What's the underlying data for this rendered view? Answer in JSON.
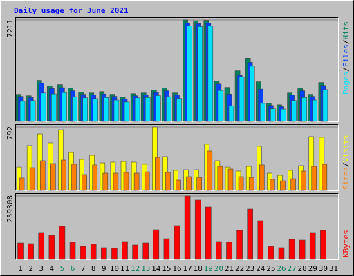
{
  "chart_data": [
    {
      "type": "bar",
      "title": "Daily usage for June 2021",
      "ylim": [
        0,
        7211
      ],
      "yticks": [
        7211
      ],
      "legend_separator": "/",
      "series": [
        {
          "name": "Hits",
          "color": "#00805c",
          "values": [
            1926,
            1830,
            2915,
            2520,
            2620,
            2370,
            2075,
            2025,
            2125,
            1930,
            1730,
            1975,
            2025,
            2220,
            2370,
            2025,
            7211,
            7150,
            7180,
            2865,
            2420,
            3600,
            4495,
            2815,
            1285,
            1185,
            2025,
            2370,
            1930,
            2765,
            null
          ]
        },
        {
          "name": "Files",
          "color": "#0040ff",
          "values": [
            1780,
            1700,
            2720,
            2340,
            2400,
            2180,
            1930,
            1880,
            1950,
            1790,
            1600,
            1830,
            1880,
            2060,
            2180,
            1880,
            7000,
            6950,
            6980,
            2660,
            1950,
            3280,
            4200,
            2300,
            1140,
            1060,
            1880,
            2180,
            1780,
            2560,
            null
          ]
        },
        {
          "name": "Pages",
          "color": "#00e0ff",
          "values": [
            1430,
            1480,
            2020,
            1960,
            2050,
            1760,
            1680,
            1620,
            1700,
            1520,
            1380,
            1680,
            1700,
            1840,
            1760,
            1640,
            6800,
            6750,
            6780,
            2200,
            1100,
            3180,
            3930,
            1280,
            900,
            880,
            1480,
            1700,
            1520,
            2260,
            null
          ]
        }
      ]
    },
    {
      "type": "bar",
      "ylim": [
        0,
        792
      ],
      "yticks": [
        792
      ],
      "legend_separator": "/",
      "series": [
        {
          "name": "Visits",
          "color": "#ffff00",
          "values": [
            292,
            560,
            706,
            594,
            757,
            473,
            387,
            439,
            344,
            353,
            361,
            353,
            327,
            792,
            422,
            250,
            258,
            258,
            577,
            370,
            292,
            241,
            301,
            551,
            215,
            189,
            250,
            310,
            672,
            663,
            null
          ]
        },
        {
          "name": "Sites",
          "color": "#ff8000",
          "values": [
            155,
            284,
            370,
            336,
            379,
            327,
            198,
            319,
            215,
            215,
            224,
            215,
            232,
            413,
            224,
            129,
            172,
            163,
            491,
            301,
            267,
            172,
            163,
            319,
            138,
            120,
            146,
            241,
            301,
            327,
            null
          ]
        }
      ]
    },
    {
      "type": "bar",
      "ylim": [
        0,
        259308
      ],
      "yticks": [
        259308
      ],
      "series": [
        {
          "name": "KBytes",
          "color": "#ff0000",
          "values": [
            67600,
            64800,
            110000,
            98600,
            135300,
            70500,
            53500,
            62000,
            47900,
            45100,
            73300,
            59200,
            67600,
            121200,
            84500,
            138100,
            259308,
            242400,
            214200,
            73300,
            70500,
            118400,
            205700,
            157800,
            53500,
            47900,
            81700,
            78900,
            109900,
            118400,
            null
          ]
        }
      ],
      "categories": [
        "1",
        "2",
        "3",
        "4",
        "5",
        "6",
        "7",
        "8",
        "9",
        "10",
        "11",
        "12",
        "13",
        "14",
        "15",
        "16",
        "17",
        "18",
        "19",
        "20",
        "21",
        "22",
        "23",
        "24",
        "25",
        "26",
        "27",
        "28",
        "29",
        "30",
        "31"
      ],
      "category_colors": [
        "#000000",
        "#000000",
        "#000000",
        "#000000",
        "#00805c",
        "#00805c",
        "#000000",
        "#000000",
        "#000000",
        "#000000",
        "#000000",
        "#00805c",
        "#00805c",
        "#000000",
        "#000000",
        "#000000",
        "#000000",
        "#000000",
        "#00805c",
        "#00805c",
        "#000000",
        "#000000",
        "#000000",
        "#000000",
        "#000000",
        "#00805c",
        "#00805c",
        "#000000",
        "#000000",
        "#000000",
        "#000000"
      ]
    }
  ]
}
